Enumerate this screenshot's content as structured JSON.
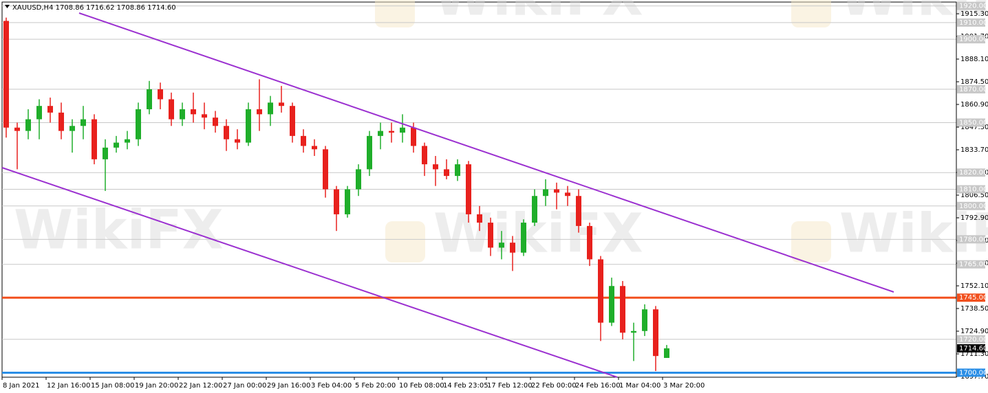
{
  "chart_data": {
    "type": "candlestick",
    "title": "XAUUSD,H4  1708.86 1716.62 1708.86 1714.60",
    "watermark": "WikiFX",
    "categories": [
      "8 Jan 2021",
      null,
      null,
      null,
      "12 Jan 16:00",
      null,
      null,
      null,
      "15 Jan 08:00",
      null,
      null,
      null,
      "19 Jan 20:00",
      null,
      null,
      null,
      "22 Jan 12:00",
      null,
      null,
      null,
      "27 Jan 00:00",
      null,
      null,
      null,
      "29 Jan 16:00",
      null,
      null,
      null,
      "3 Feb 04:00",
      null,
      null,
      null,
      "5 Feb 20:00",
      null,
      null,
      null,
      "10 Feb 08:00",
      null,
      null,
      null,
      "14 Feb 23:05",
      null,
      null,
      null,
      "17 Feb 12:00",
      null,
      null,
      null,
      "22 Feb 00:00",
      null,
      null,
      null,
      "24 Feb 16:00",
      null,
      null,
      null,
      "1 Mar 04:00",
      null,
      null,
      null,
      "3 Mar 20:00"
    ],
    "open": [
      1911,
      1847,
      1845,
      1852,
      1860,
      1856,
      1845,
      1848,
      1852,
      1828,
      1835,
      1838,
      1840,
      1858,
      1870,
      1864,
      1852,
      1858,
      1855,
      1853,
      1848,
      1840,
      1838,
      1858,
      1855,
      1862,
      1860,
      1842,
      1836,
      1834,
      1810,
      1795,
      1810,
      1822,
      1842,
      1845,
      1844,
      1847,
      1836,
      1825,
      1822,
      1818,
      1825,
      1795,
      1790,
      1775,
      1778,
      1772,
      1790,
      1806,
      1810,
      1808,
      1806,
      1788,
      1768,
      1730,
      1752,
      1724,
      1725,
      1738,
      1708.86
    ],
    "high": [
      1913,
      1850,
      1858,
      1864,
      1865,
      1862,
      1852,
      1860,
      1855,
      1840,
      1842,
      1845,
      1862,
      1875,
      1874,
      1868,
      1862,
      1868,
      1862,
      1857,
      1852,
      1846,
      1862,
      1876,
      1866,
      1872,
      1862,
      1846,
      1840,
      1836,
      1812,
      1812,
      1825,
      1845,
      1850,
      1850,
      1855,
      1850,
      1838,
      1830,
      1828,
      1828,
      1827,
      1800,
      1793,
      1785,
      1782,
      1792,
      1810,
      1816,
      1814,
      1812,
      1810,
      1790,
      1770,
      1757,
      1755,
      1730,
      1741,
      1740,
      1716.62
    ],
    "low": [
      1841,
      1822,
      1840,
      1840,
      1850,
      1840,
      1832,
      1840,
      1825,
      1809,
      1832,
      1834,
      1836,
      1855,
      1858,
      1848,
      1848,
      1850,
      1846,
      1844,
      1833,
      1834,
      1836,
      1845,
      1848,
      1856,
      1838,
      1832,
      1830,
      1805,
      1785,
      1793,
      1806,
      1818,
      1834,
      1838,
      1838,
      1832,
      1818,
      1812,
      1816,
      1815,
      1790,
      1785,
      1770,
      1768,
      1761,
      1770,
      1788,
      1800,
      1798,
      1800,
      1784,
      1764,
      1719,
      1728,
      1720,
      1707,
      1722,
      1701,
      1708.86
    ],
    "close": [
      1847,
      1845,
      1852,
      1860,
      1856,
      1845,
      1848,
      1852,
      1828,
      1835,
      1838,
      1840,
      1858,
      1870,
      1864,
      1852,
      1858,
      1855,
      1853,
      1848,
      1840,
      1838,
      1858,
      1855,
      1862,
      1860,
      1842,
      1836,
      1834,
      1810,
      1795,
      1810,
      1822,
      1842,
      1845,
      1844,
      1847,
      1836,
      1825,
      1822,
      1818,
      1825,
      1795,
      1790,
      1775,
      1778,
      1772,
      1790,
      1806,
      1810,
      1808,
      1806,
      1788,
      1768,
      1730,
      1752,
      1724,
      1725,
      1738,
      1710,
      1714.6
    ],
    "bull_color": "#1fae2a",
    "bear_color": "#e8211d",
    "ylim": [
      1697.3,
      1922.3
    ],
    "yticks": [
      {
        "value": 1915.3,
        "label": "1915.30"
      },
      {
        "value": 1901.7,
        "label": "1901.70"
      },
      {
        "value": 1888.1,
        "label": "1888.10"
      },
      {
        "value": 1874.5,
        "label": "1874.50"
      },
      {
        "value": 1860.9,
        "label": "1860.90"
      },
      {
        "value": 1847.3,
        "label": "1847.30"
      },
      {
        "value": 1833.7,
        "label": "1833.70"
      },
      {
        "value": 1820.1,
        "label": "1820.10"
      },
      {
        "value": 1806.5,
        "label": "1806.50"
      },
      {
        "value": 1792.9,
        "label": "1792.90"
      },
      {
        "value": 1779.3,
        "label": "1779.30"
      },
      {
        "value": 1765.7,
        "label": "1765.70"
      },
      {
        "value": 1752.1,
        "label": "1752.10"
      },
      {
        "value": 1738.5,
        "label": "1738.50"
      },
      {
        "value": 1724.9,
        "label": "1724.90"
      },
      {
        "value": 1711.3,
        "label": "1711.30"
      },
      {
        "value": 1697.7,
        "label": "1697.70"
      }
    ],
    "levels": [
      {
        "value": 1920,
        "label": "1920.00"
      },
      {
        "value": 1910,
        "label": "1910.00"
      },
      {
        "value": 1900,
        "label": "1900.00"
      },
      {
        "value": 1870,
        "label": "1870.00"
      },
      {
        "value": 1850,
        "label": "1850.00"
      },
      {
        "value": 1820,
        "label": "1820.00"
      },
      {
        "value": 1810,
        "label": "1810.00"
      },
      {
        "value": 1800,
        "label": "1800.00"
      },
      {
        "value": 1780,
        "label": "1780.00"
      },
      {
        "value": 1765,
        "label": "1765.00"
      },
      {
        "value": 1720,
        "label": "1720.00"
      }
    ],
    "level_color": "#c8c8c8",
    "lines": [
      {
        "value": 1745,
        "label": "1745.00",
        "color": "#f2501e"
      },
      {
        "value": 1700,
        "label": "1700.00",
        "color": "#2a8ee6"
      }
    ],
    "last": {
      "value": 1714.6,
      "label": "1714.60"
    }
  }
}
